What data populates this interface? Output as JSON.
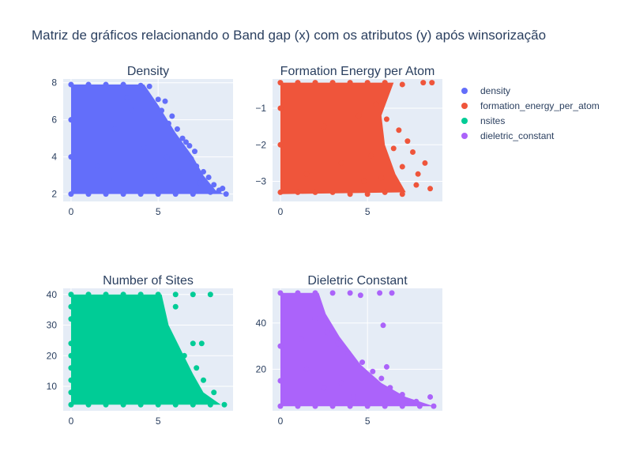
{
  "title": "Matriz de gráficos relacionando o Band gap (x) com os atributos (y) após winsorização",
  "colors": {
    "plot_bg": "#e5ecf6",
    "grid": "#ffffff",
    "text": "#2a3f5f"
  },
  "legend": {
    "placement": "top-right",
    "items": [
      {
        "label": "density",
        "color": "#636efa"
      },
      {
        "label": "formation_energy_per_atom",
        "color": "#ef553b"
      },
      {
        "label": "nsites",
        "color": "#00cc96"
      },
      {
        "label": "dieletric_constant",
        "color": "#ab63fa"
      }
    ]
  },
  "chart_data": [
    {
      "type": "scatter",
      "title": "Density",
      "series_name": "density",
      "color": "#636efa",
      "xlim": [
        -0.45,
        9.3
      ],
      "ylim": [
        1.6,
        8.2
      ],
      "xticks": [
        0,
        5
      ],
      "yticks": [
        2,
        4,
        6,
        8
      ],
      "grid": true,
      "points": [
        [
          0,
          7.9
        ],
        [
          1,
          7.9
        ],
        [
          2,
          7.9
        ],
        [
          3,
          7.9
        ],
        [
          4,
          7.85
        ],
        [
          4.5,
          7.8
        ],
        [
          5,
          7.1
        ],
        [
          5.4,
          7.0
        ],
        [
          5.2,
          6.5
        ],
        [
          5.8,
          6.2
        ],
        [
          5.6,
          5.8
        ],
        [
          6.1,
          5.5
        ],
        [
          6.4,
          5.0
        ],
        [
          6.6,
          4.8
        ],
        [
          6.8,
          4.6
        ],
        [
          7.1,
          4.3
        ],
        [
          6.9,
          3.9
        ],
        [
          7.2,
          3.5
        ],
        [
          7.6,
          3.2
        ],
        [
          7.9,
          2.9
        ],
        [
          8.2,
          2.5
        ],
        [
          8.5,
          2.2
        ],
        [
          8.9,
          2.0
        ],
        [
          8.7,
          2.3
        ],
        [
          0,
          2.0
        ],
        [
          1,
          2.0
        ],
        [
          2,
          2.0
        ],
        [
          3,
          2.0
        ],
        [
          4,
          2.0
        ],
        [
          5,
          2.0
        ],
        [
          6,
          2.0
        ],
        [
          7,
          2.0
        ],
        [
          8,
          2.1
        ],
        [
          0,
          4.0
        ],
        [
          0,
          6.0
        ],
        [
          1.5,
          3.5
        ],
        [
          2.5,
          5.5
        ],
        [
          3.5,
          6.5
        ],
        [
          4.2,
          4.5
        ],
        [
          4.8,
          3.0
        ],
        [
          5.5,
          4.0
        ],
        [
          6.2,
          3.2
        ],
        [
          7.4,
          2.6
        ],
        [
          3.2,
          7.2
        ],
        [
          2.2,
          2.8
        ]
      ]
    },
    {
      "type": "scatter",
      "title": "Formation Energy per Atom",
      "series_name": "formation_energy_per_atom",
      "color": "#ef553b",
      "xlim": [
        -0.45,
        9.3
      ],
      "ylim": [
        -3.55,
        -0.2
      ],
      "xticks": [
        0,
        5
      ],
      "yticks": [
        -1,
        -2,
        -3
      ],
      "grid": true,
      "points": [
        [
          0,
          -0.3
        ],
        [
          1,
          -0.3
        ],
        [
          2,
          -0.3
        ],
        [
          3,
          -0.3
        ],
        [
          4,
          -0.3
        ],
        [
          5,
          -0.3
        ],
        [
          6,
          -0.3
        ],
        [
          7,
          -0.35
        ],
        [
          8.2,
          -0.3
        ],
        [
          8.7,
          -0.3
        ],
        [
          0,
          -3.3
        ],
        [
          1,
          -3.3
        ],
        [
          2,
          -3.3
        ],
        [
          3,
          -3.3
        ],
        [
          4,
          -3.35
        ],
        [
          5,
          -3.35
        ],
        [
          6,
          -3.3
        ],
        [
          7,
          -3.35
        ],
        [
          7.8,
          -3.1
        ],
        [
          8.6,
          -3.2
        ],
        [
          5.5,
          -0.9
        ],
        [
          6.1,
          -1.3
        ],
        [
          6.8,
          -1.6
        ],
        [
          7.3,
          -1.9
        ],
        [
          7.6,
          -2.2
        ],
        [
          8.3,
          -2.5
        ],
        [
          7.9,
          -2.8
        ],
        [
          6.5,
          -2.1
        ],
        [
          7.0,
          -2.6
        ],
        [
          0,
          -1.0
        ],
        [
          0,
          -2.0
        ],
        [
          2.5,
          -1.5
        ],
        [
          3.5,
          -2.5
        ],
        [
          4.5,
          -1.2
        ],
        [
          5.2,
          -2.3
        ],
        [
          5.8,
          -2.9
        ],
        [
          1.5,
          -2.8
        ],
        [
          4.8,
          -3.0
        ]
      ]
    },
    {
      "type": "scatter",
      "title": "Number of Sites",
      "series_name": "nsites",
      "color": "#00cc96",
      "xlim": [
        -0.45,
        9.3
      ],
      "ylim": [
        2,
        42
      ],
      "xticks": [
        0,
        5
      ],
      "yticks": [
        10,
        20,
        30,
        40
      ],
      "grid": true,
      "points": [
        [
          0,
          40
        ],
        [
          1,
          40
        ],
        [
          2,
          40
        ],
        [
          3,
          40
        ],
        [
          4,
          40
        ],
        [
          5,
          40
        ],
        [
          6,
          40
        ],
        [
          7,
          40
        ],
        [
          8.0,
          40
        ],
        [
          0,
          4
        ],
        [
          1,
          4
        ],
        [
          2,
          4
        ],
        [
          3,
          4
        ],
        [
          4,
          4
        ],
        [
          5,
          4
        ],
        [
          6,
          4
        ],
        [
          7,
          4
        ],
        [
          8,
          4
        ],
        [
          8.8,
          4
        ],
        [
          0,
          36
        ],
        [
          4,
          36
        ],
        [
          6,
          36
        ],
        [
          0,
          32
        ],
        [
          5,
          32
        ],
        [
          0,
          24
        ],
        [
          7,
          24
        ],
        [
          7.5,
          24
        ],
        [
          0,
          20
        ],
        [
          6.5,
          20
        ],
        [
          0,
          16
        ],
        [
          7.2,
          16
        ],
        [
          0,
          12
        ],
        [
          7.6,
          12
        ],
        [
          0,
          8
        ],
        [
          8.2,
          8
        ],
        [
          2,
          28
        ],
        [
          3,
          14
        ],
        [
          4.5,
          18
        ],
        [
          5.5,
          10
        ],
        [
          6.1,
          6
        ],
        [
          1.5,
          22
        ],
        [
          3.5,
          30
        ]
      ]
    },
    {
      "type": "scatter",
      "title": "Dieletric Constant",
      "series_name": "dieletric_constant",
      "color": "#ab63fa",
      "xlim": [
        -0.45,
        9.3
      ],
      "ylim": [
        2,
        55
      ],
      "xticks": [
        0,
        5
      ],
      "yticks": [
        20,
        40
      ],
      "grid": true,
      "points": [
        [
          0,
          53
        ],
        [
          1,
          53
        ],
        [
          2,
          53
        ],
        [
          3,
          53
        ],
        [
          4,
          53
        ],
        [
          4.6,
          52
        ],
        [
          5.7,
          53
        ],
        [
          6.4,
          53
        ],
        [
          0,
          4
        ],
        [
          1,
          4
        ],
        [
          2,
          4
        ],
        [
          3,
          4
        ],
        [
          4,
          4
        ],
        [
          5,
          4
        ],
        [
          6,
          4
        ],
        [
          7,
          4
        ],
        [
          8,
          4
        ],
        [
          8.8,
          4
        ],
        [
          8.6,
          8
        ],
        [
          7.8,
          6
        ],
        [
          7.0,
          9
        ],
        [
          6.3,
          12
        ],
        [
          5.8,
          16
        ],
        [
          5.3,
          19
        ],
        [
          4.7,
          23
        ],
        [
          3.9,
          27
        ],
        [
          3.3,
          31
        ],
        [
          2.7,
          36
        ],
        [
          2.0,
          42
        ],
        [
          5.9,
          39
        ],
        [
          6.1,
          21
        ],
        [
          0,
          30
        ],
        [
          0,
          15
        ],
        [
          1.5,
          20
        ],
        [
          2.5,
          12
        ],
        [
          3.5,
          14
        ],
        [
          4.2,
          8
        ],
        [
          1.2,
          33
        ]
      ]
    }
  ]
}
